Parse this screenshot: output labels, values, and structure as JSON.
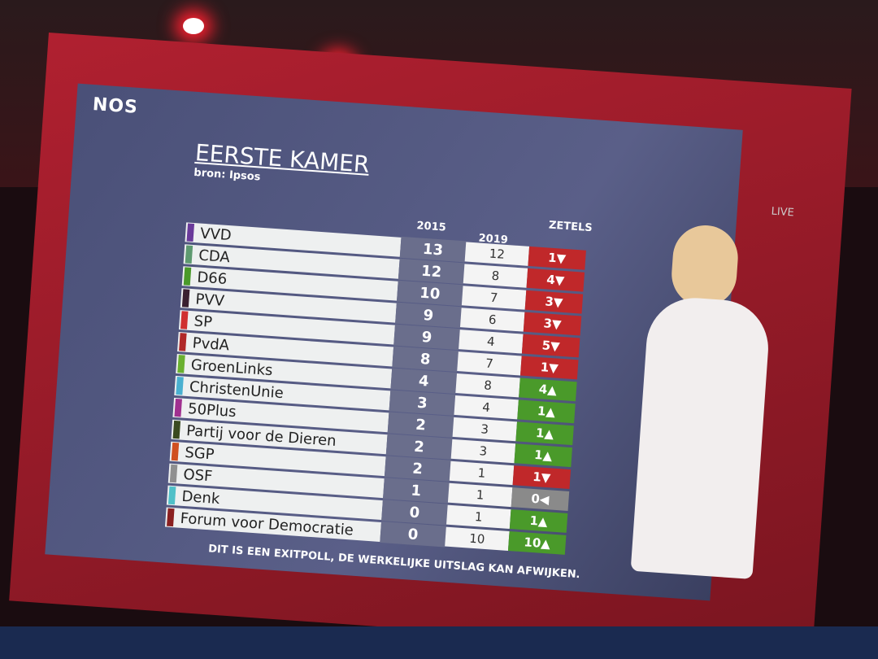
{
  "header": {
    "logo": "NOS",
    "title": "EERSTE KAMER",
    "source": "bron: Ipsos",
    "channel": "LIVE"
  },
  "table": {
    "columns": [
      "2015",
      "2019",
      "ZETELS"
    ],
    "rows": [
      {
        "party": "VVD",
        "y2015": "13",
        "y2019": "12",
        "change": "1▼",
        "party_color": "#6a3a9a",
        "change_color": "#c0282a"
      },
      {
        "party": "CDA",
        "y2015": "12",
        "y2019": "8",
        "change": "4▼",
        "party_color": "#5e9a70",
        "change_color": "#c0282a"
      },
      {
        "party": "D66",
        "y2015": "10",
        "y2019": "7",
        "change": "3▼",
        "party_color": "#4a9a2a",
        "change_color": "#c0282a"
      },
      {
        "party": "PVV",
        "y2015": "9",
        "y2019": "6",
        "change": "3▼",
        "party_color": "#3a2030",
        "change_color": "#c0282a"
      },
      {
        "party": "SP",
        "y2015": "9",
        "y2019": "4",
        "change": "5▼",
        "party_color": "#d03030",
        "change_color": "#c0282a"
      },
      {
        "party": "PvdA",
        "y2015": "8",
        "y2019": "7",
        "change": "1▼",
        "party_color": "#b02828",
        "change_color": "#c0282a"
      },
      {
        "party": "GroenLinks",
        "y2015": "4",
        "y2019": "8",
        "change": "4▲",
        "party_color": "#6ab030",
        "change_color": "#4a9a2a"
      },
      {
        "party": "ChristenUnie",
        "y2015": "3",
        "y2019": "4",
        "change": "1▲",
        "party_color": "#4ab0d0",
        "change_color": "#4a9a2a"
      },
      {
        "party": "50Plus",
        "y2015": "2",
        "y2019": "3",
        "change": "1▲",
        "party_color": "#a03090",
        "change_color": "#4a9a2a"
      },
      {
        "party": "Partij voor de Dieren",
        "y2015": "2",
        "y2019": "3",
        "change": "1▲",
        "party_color": "#3a4a20",
        "change_color": "#4a9a2a"
      },
      {
        "party": "SGP",
        "y2015": "2",
        "y2019": "1",
        "change": "1▼",
        "party_color": "#d05020",
        "change_color": "#c0282a"
      },
      {
        "party": "OSF",
        "y2015": "1",
        "y2019": "1",
        "change": "0◀",
        "party_color": "#909090",
        "change_color": "#8a8a8a"
      },
      {
        "party": "Denk",
        "y2015": "0",
        "y2019": "1",
        "change": "1▲",
        "party_color": "#50c0c8",
        "change_color": "#4a9a2a"
      },
      {
        "party": "Forum voor Democratie",
        "y2015": "0",
        "y2019": "10",
        "change": "10▲",
        "party_color": "#8a2020",
        "change_color": "#4a9a2a"
      }
    ]
  },
  "footer": "DIT IS EEN EXITPOLL, DE WERKELIJKE UITSLAG KAN AFWIJKEN."
}
